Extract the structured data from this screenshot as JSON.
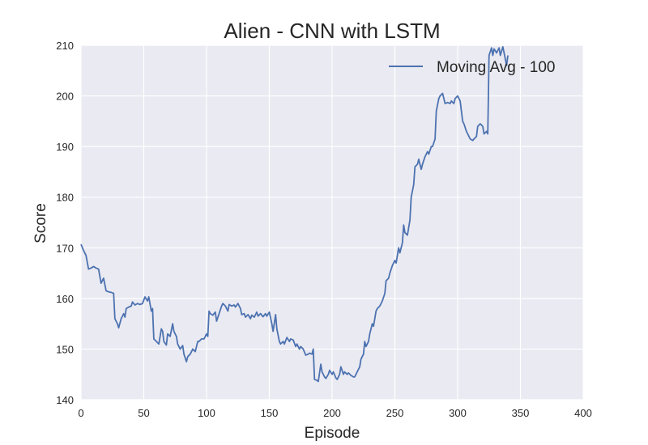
{
  "chart_data": {
    "type": "line",
    "title": "Alien - CNN with LSTM",
    "xlabel": "Episode",
    "ylabel": "Score",
    "xlim": [
      0,
      400
    ],
    "ylim": [
      140,
      210
    ],
    "xticks": [
      0,
      50,
      100,
      150,
      200,
      250,
      300,
      350,
      400
    ],
    "yticks": [
      140,
      150,
      160,
      170,
      180,
      190,
      200,
      210
    ],
    "grid": true,
    "legend_position": "top-right",
    "series": [
      {
        "name": "Moving Avg - 100",
        "color": "#4c72b0",
        "points": [
          [
            0,
            170.7
          ],
          [
            2,
            169.5
          ],
          [
            4,
            168.5
          ],
          [
            6,
            165.8
          ],
          [
            8,
            166.0
          ],
          [
            10,
            166.3
          ],
          [
            12,
            166.0
          ],
          [
            14,
            165.8
          ],
          [
            16,
            163.0
          ],
          [
            18,
            164.0
          ],
          [
            20,
            161.5
          ],
          [
            22,
            161.3
          ],
          [
            24,
            161.2
          ],
          [
            26,
            161.0
          ],
          [
            27,
            156.0
          ],
          [
            29,
            155.0
          ],
          [
            30,
            154.2
          ],
          [
            32,
            156.0
          ],
          [
            34,
            157.0
          ],
          [
            35,
            156.3
          ],
          [
            36,
            158.0
          ],
          [
            38,
            158.3
          ],
          [
            40,
            158.5
          ],
          [
            41,
            159.3
          ],
          [
            43,
            158.7
          ],
          [
            45,
            159.0
          ],
          [
            47,
            158.8
          ],
          [
            49,
            159.0
          ],
          [
            51,
            160.3
          ],
          [
            53,
            159.5
          ],
          [
            54,
            160.3
          ],
          [
            56,
            157.5
          ],
          [
            57,
            158.0
          ],
          [
            58,
            152.0
          ],
          [
            60,
            151.5
          ],
          [
            62,
            151.0
          ],
          [
            64,
            154.0
          ],
          [
            65,
            153.5
          ],
          [
            66,
            151.5
          ],
          [
            68,
            150.8
          ],
          [
            69,
            153.0
          ],
          [
            71,
            152.5
          ],
          [
            73,
            155.0
          ],
          [
            74,
            153.5
          ],
          [
            76,
            152.5
          ],
          [
            77,
            151.0
          ],
          [
            79,
            150.0
          ],
          [
            81,
            150.7
          ],
          [
            82,
            149.0
          ],
          [
            84,
            147.5
          ],
          [
            85,
            148.5
          ],
          [
            87,
            149.0
          ],
          [
            89,
            150.0
          ],
          [
            91,
            149.5
          ],
          [
            93,
            151.5
          ],
          [
            94,
            151.5
          ],
          [
            96,
            152.0
          ],
          [
            98,
            152.0
          ],
          [
            100,
            153.0
          ],
          [
            101,
            152.5
          ],
          [
            102,
            157.5
          ],
          [
            103,
            157.0
          ],
          [
            105,
            156.7
          ],
          [
            107,
            157.3
          ],
          [
            108,
            155.5
          ],
          [
            110,
            157.0
          ],
          [
            112,
            158.5
          ],
          [
            113,
            159.0
          ],
          [
            115,
            158.5
          ],
          [
            117,
            157.5
          ],
          [
            118,
            158.8
          ],
          [
            120,
            158.5
          ],
          [
            122,
            158.7
          ],
          [
            123,
            158.3
          ],
          [
            125,
            159.0
          ],
          [
            127,
            158.0
          ],
          [
            128,
            156.8
          ],
          [
            130,
            157.0
          ],
          [
            131,
            156.3
          ],
          [
            133,
            156.8
          ],
          [
            135,
            156.0
          ],
          [
            136,
            156.7
          ],
          [
            138,
            156.3
          ],
          [
            140,
            157.3
          ],
          [
            141,
            156.5
          ],
          [
            143,
            157.0
          ],
          [
            145,
            156.4
          ],
          [
            147,
            157.0
          ],
          [
            148,
            156.5
          ],
          [
            150,
            157.3
          ],
          [
            152,
            155.0
          ],
          [
            153,
            153.5
          ],
          [
            155,
            156.8
          ],
          [
            156,
            154.0
          ],
          [
            158,
            151.5
          ],
          [
            159,
            151.0
          ],
          [
            161,
            151.5
          ],
          [
            162,
            151.0
          ],
          [
            164,
            152.3
          ],
          [
            166,
            151.5
          ],
          [
            167,
            152.0
          ],
          [
            169,
            151.8
          ],
          [
            171,
            150.5
          ],
          [
            172,
            151.0
          ],
          [
            174,
            150.0
          ],
          [
            175,
            150.5
          ],
          [
            177,
            150.0
          ],
          [
            179,
            148.8
          ],
          [
            181,
            149.0
          ],
          [
            182,
            149.2
          ],
          [
            184,
            149.0
          ],
          [
            185,
            150.0
          ],
          [
            186,
            144.0
          ],
          [
            188,
            143.8
          ],
          [
            189,
            143.6
          ],
          [
            191,
            147.0
          ],
          [
            192,
            145.5
          ],
          [
            194,
            144.5
          ],
          [
            195,
            144.2
          ],
          [
            197,
            145.0
          ],
          [
            198,
            145.8
          ],
          [
            200,
            145.0
          ],
          [
            201,
            145.5
          ],
          [
            203,
            144.3
          ],
          [
            204,
            144.0
          ],
          [
            206,
            145.0
          ],
          [
            207,
            146.5
          ],
          [
            209,
            145.0
          ],
          [
            210,
            145.5
          ],
          [
            212,
            145.0
          ],
          [
            213,
            145.3
          ],
          [
            215,
            144.8
          ],
          [
            217,
            144.5
          ],
          [
            218,
            144.5
          ],
          [
            220,
            145.5
          ],
          [
            222,
            146.5
          ],
          [
            223,
            148.0
          ],
          [
            225,
            149.0
          ],
          [
            226,
            151.5
          ],
          [
            227,
            150.5
          ],
          [
            229,
            151.5
          ],
          [
            230,
            153.0
          ],
          [
            232,
            155.0
          ],
          [
            233,
            154.5
          ],
          [
            235,
            157.5
          ],
          [
            236,
            158.0
          ],
          [
            238,
            158.5
          ],
          [
            240,
            159.5
          ],
          [
            242,
            161.0
          ],
          [
            243,
            163.5
          ],
          [
            245,
            164.0
          ],
          [
            246,
            165.0
          ],
          [
            248,
            166.5
          ],
          [
            250,
            167.5
          ],
          [
            251,
            167.0
          ],
          [
            253,
            170.0
          ],
          [
            254,
            169.0
          ],
          [
            256,
            171.0
          ],
          [
            257,
            174.5
          ],
          [
            258,
            173.0
          ],
          [
            260,
            172.5
          ],
          [
            262,
            175.5
          ],
          [
            263,
            180.0
          ],
          [
            265,
            182.5
          ],
          [
            266,
            186.0
          ],
          [
            268,
            186.5
          ],
          [
            269,
            187.5
          ],
          [
            271,
            185.5
          ],
          [
            272,
            186.5
          ],
          [
            274,
            188.0
          ],
          [
            276,
            189.0
          ],
          [
            277,
            188.5
          ],
          [
            279,
            190.0
          ],
          [
            280,
            190.0
          ],
          [
            282,
            191.5
          ],
          [
            283,
            197.0
          ],
          [
            285,
            199.5
          ],
          [
            286,
            200.0
          ],
          [
            288,
            200.5
          ],
          [
            290,
            198.5
          ],
          [
            292,
            198.7
          ],
          [
            294,
            198.5
          ],
          [
            295,
            199.0
          ],
          [
            297,
            198.5
          ],
          [
            298,
            199.5
          ],
          [
            300,
            200.0
          ],
          [
            302,
            199.0
          ],
          [
            304,
            195.0
          ],
          [
            305,
            194.5
          ],
          [
            307,
            193.0
          ],
          [
            308,
            192.5
          ],
          [
            310,
            191.5
          ],
          [
            312,
            191.2
          ],
          [
            313,
            191.5
          ],
          [
            315,
            192.0
          ],
          [
            316,
            194.0
          ],
          [
            318,
            194.5
          ],
          [
            320,
            194.0
          ],
          [
            321,
            192.5
          ],
          [
            323,
            193.0
          ],
          [
            324,
            192.5
          ],
          [
            325,
            208.0
          ],
          [
            327,
            209.5
          ],
          [
            328,
            208.0
          ],
          [
            329,
            209.3
          ],
          [
            331,
            208.5
          ],
          [
            333,
            209.5
          ],
          [
            334,
            208.0
          ],
          [
            336,
            209.7
          ],
          [
            337,
            208.5
          ],
          [
            339,
            206.0
          ],
          [
            340,
            208.0
          ]
        ]
      }
    ]
  }
}
